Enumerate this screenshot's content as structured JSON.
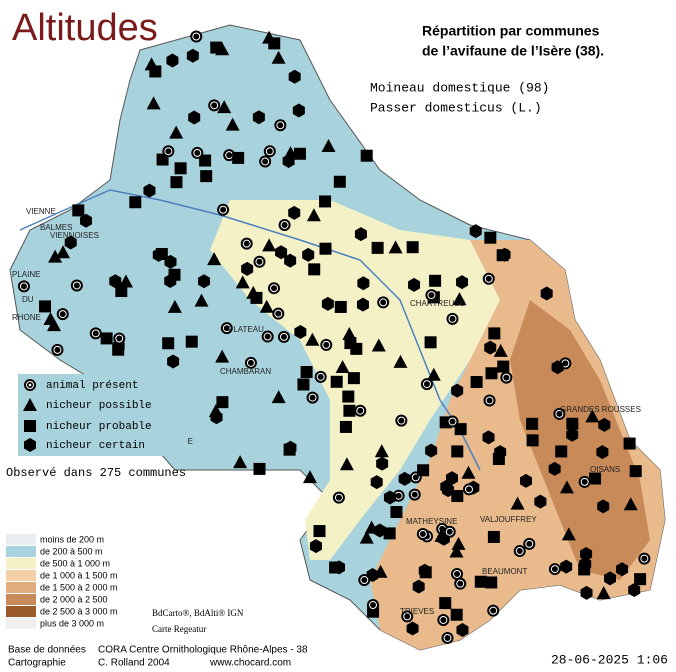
{
  "header": {
    "title": "Altitudes",
    "subtitle": [
      "Répartition par communes",
      "de l’avifaune de l’Isère (38)."
    ],
    "species": {
      "common": "Moineau domestique  (98)",
      "latin": "Passer domesticus (L.)"
    }
  },
  "legend": {
    "markers": [
      "animal présent",
      "nicheur possible",
      "nicheur probable",
      "nicheur certain"
    ],
    "summary": "Observé dans 275 communes"
  },
  "altitude_legend": [
    "moins de 200 m",
    "de 200 à 500 m",
    "de 500 à 1 000 m",
    "de 1 000 à 1 500 m",
    "de 1 500 à 2 000 m",
    "de 2 000 à 2 500",
    "de 2 500 à 3 000 m",
    "plus de 3 000 m"
  ],
  "map_labels": [
    "VIENNE",
    "BALMES",
    "VIENNOISES",
    "PLAINE",
    "DU",
    "RHONE",
    "PLATEAU",
    "CHAMBARAN",
    "CHARTREUSE",
    "MATHEYSINE",
    "GRANDES ROUSSES",
    "OISANS",
    "TRIEVES",
    "BEAUMONT",
    "VALJOUFFREY",
    "BASSE ISERE"
  ],
  "credits": {
    "sources": "BdCarto®, BdAlti® IGN",
    "maker": "Carte Regeatur",
    "database_label": "Base de données",
    "database": "CORA Centre Ornithologique Rhône-Alpes - 38",
    "cartography_label": "Cartographie",
    "cartography": "C. Rolland 2004",
    "website": "www.chocard.com",
    "timestamp": "28-06-2025 1:06"
  }
}
